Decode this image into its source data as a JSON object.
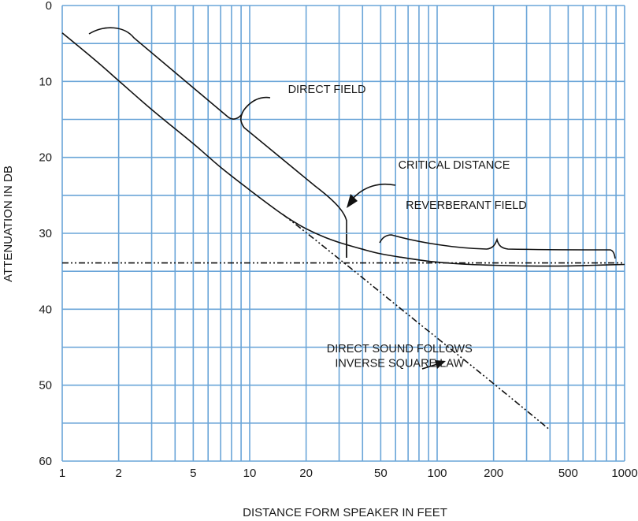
{
  "chart_data": {
    "type": "line",
    "title": "",
    "xlabel": "DISTANCE FORM SPEAKER IN FEET",
    "ylabel": "ATTENUATION IN DB",
    "x_scale": "log",
    "xlim": [
      1,
      1000
    ],
    "ylim": [
      0,
      60
    ],
    "y_inverted": true,
    "grid": true,
    "grid_color": "#6aa5d8",
    "x_tick_labels": [
      "1",
      "2",
      "5",
      "10",
      "20",
      "50",
      "100",
      "200",
      "500",
      "1000"
    ],
    "y_tick_labels": [
      "0",
      "10",
      "20",
      "30",
      "40",
      "50",
      "60"
    ],
    "series": [
      {
        "style": "solid",
        "x": [
          1.0,
          1.5,
          2,
          3,
          5,
          7,
          10,
          14,
          17,
          20,
          25,
          30,
          40,
          50,
          70,
          100,
          150,
          200,
          300,
          500,
          700,
          1000
        ],
        "y": [
          3.6,
          7.2,
          9.9,
          13.7,
          18.2,
          21.3,
          24.3,
          27.0,
          28.4,
          29.4,
          30.5,
          31.2,
          32.1,
          32.7,
          33.3,
          33.8,
          34.1,
          34.2,
          34.3,
          34.3,
          34.2,
          34.1
        ]
      },
      {
        "style": "dash-dot",
        "x": [
          15,
          20,
          35,
          50,
          100,
          200,
          400
        ],
        "y": [
          27.5,
          29.9,
          34.7,
          37.8,
          43.8,
          49.8,
          55.9
        ]
      },
      {
        "style": "dash-dot",
        "x": [
          1,
          1000
        ],
        "y": [
          33.9,
          33.9
        ]
      }
    ],
    "annotations": [
      {
        "text": "DIRECT FIELD",
        "x": 16,
        "y": 11.5
      },
      {
        "text": "CRITICAL DISTANCE",
        "x": 62,
        "y": 21.5
      },
      {
        "text": "REVERBERANT FIELD",
        "x": 68,
        "y": 26.8
      },
      {
        "text": "DIRECT SOUND FOLLOWS",
        "x": 63,
        "y": 45.7
      },
      {
        "text": "INVERSE SQUARE LAW",
        "x": 63,
        "y": 47.6
      }
    ]
  }
}
